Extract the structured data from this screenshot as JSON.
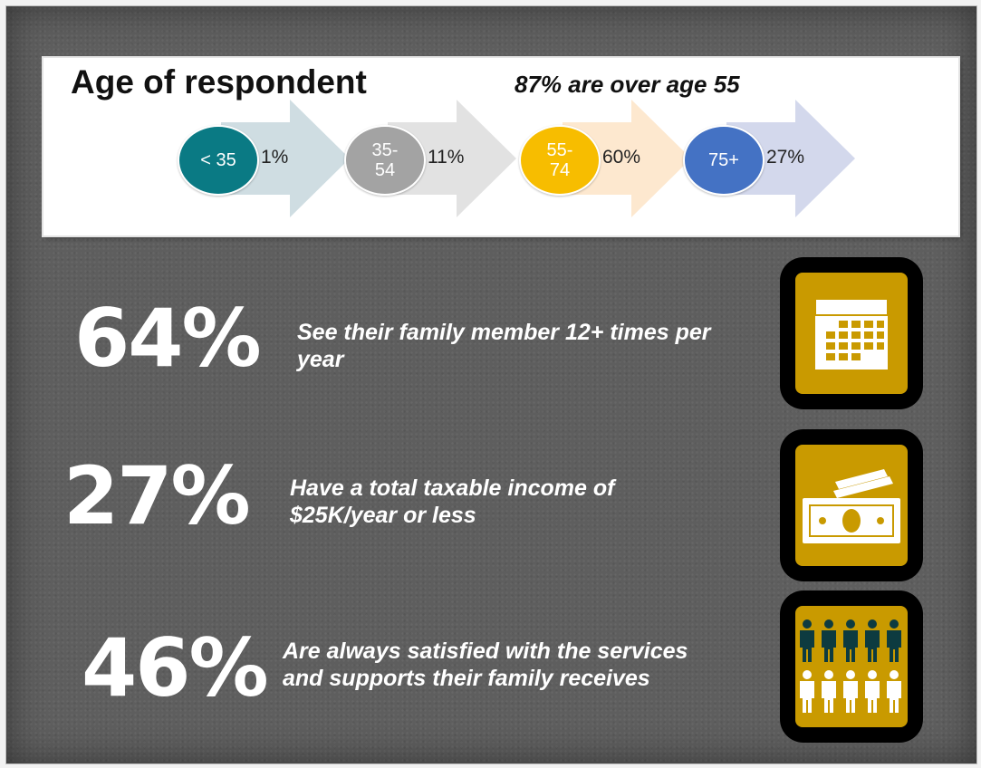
{
  "age": {
    "title": "Age of respondent",
    "note": "87% are over age 55",
    "groups": [
      {
        "label": "< 35",
        "label_lines": [
          "< 35"
        ],
        "percent": "1%",
        "circle_color": "#0a7a84",
        "arrow_color": "#cfdde2"
      },
      {
        "label": "35-54",
        "label_lines": [
          "35-",
          "54"
        ],
        "percent": "11%",
        "circle_color": "#a3a3a3",
        "arrow_color": "#e2e2e2"
      },
      {
        "label": "55-74",
        "label_lines": [
          "55-",
          "74"
        ],
        "percent": "60%",
        "circle_color": "#f7bd00",
        "arrow_color": "#fde8cf"
      },
      {
        "label": "75+",
        "label_lines": [
          "75+"
        ],
        "percent": "27%",
        "circle_color": "#4472c4",
        "arrow_color": "#d3d8ec"
      }
    ]
  },
  "stats": [
    {
      "value": "64%",
      "text": "See their family member 12+ times per year",
      "icon": "calendar-icon"
    },
    {
      "value": "27%",
      "text": "Have a total taxable income of $25K/year or less",
      "icon": "money-icon"
    },
    {
      "value": "46%",
      "text": "Are always satisfied with the services and supports their family receives",
      "icon": "people-icon"
    }
  ],
  "colors": {
    "background": "#5e5e5e",
    "icon_fill": "#c99a00",
    "icon_frame": "#000000",
    "people_dark": "#0d3b40"
  }
}
